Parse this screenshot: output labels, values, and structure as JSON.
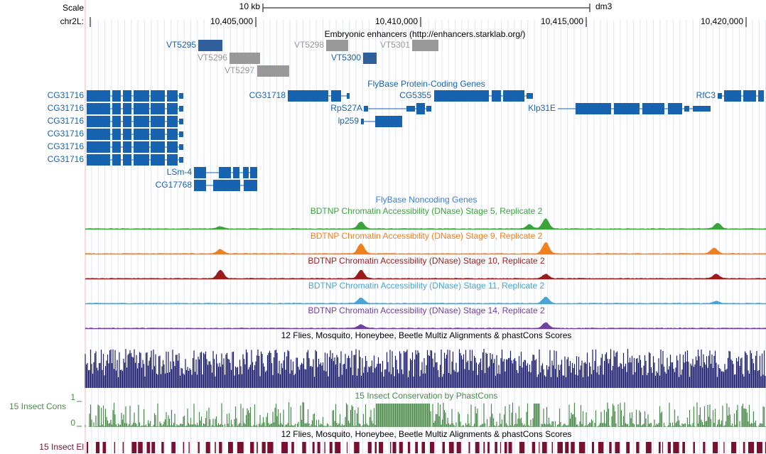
{
  "scale": {
    "label": "Scale",
    "size": "10 kb",
    "assembly": "dm3",
    "chrom": "chr2L:",
    "positions": [
      "10,405,000",
      "10,410,000",
      "10,415,000",
      "10,420,000"
    ]
  },
  "tracks": {
    "enhancers": {
      "title": "Embryonic enhancers (http://enhancers.starklab.org/)",
      "items": [
        "VT5295",
        "VT5296",
        "VT5297",
        "VT5298",
        "VT5300",
        "VT5301"
      ]
    },
    "protein_coding": {
      "title": "FlyBase Protein-Coding Genes",
      "genes": [
        "CG31716",
        "CG31716",
        "CG31716",
        "CG31716",
        "CG31716",
        "CG31716",
        "CG31718",
        "CG5355",
        "RfC3",
        "RpS27A",
        "Klp31E",
        "lp259",
        "LSm-4",
        "CG17768"
      ]
    },
    "noncoding": {
      "title": "FlyBase Noncoding Genes"
    },
    "dnase": [
      "BDTNP Chromatin Accessibility (DNase) Stage 5, Replicate 2",
      "BDTNP Chromatin Accessibility (DNase) Stage 9, Replicate 2",
      "BDTNP Chromatin Accessibility (DNase) Stage 10, Replicate 2",
      "BDTNP Chromatin Accessibility (DNase) Stage 11, Replicate 2",
      "BDTNP Chromatin Accessibility (DNase) Stage 14, Replicate 2"
    ],
    "multiz_top": {
      "title": "12 Flies, Mosquito, Honeybee, Beetle Multiz Alignments & phastCons Scores"
    },
    "conservation": {
      "title": "15 Insect Conservation by PhastCons",
      "label": "15 Insect Cons",
      "max_label": "1",
      "min_label": "0"
    },
    "multiz_bottom": {
      "title": "12 Flies, Mosquito, Honeybee, Beetle Multiz Alignments & phastCons Scores"
    },
    "elements": {
      "label": "15 Insect El"
    }
  }
}
